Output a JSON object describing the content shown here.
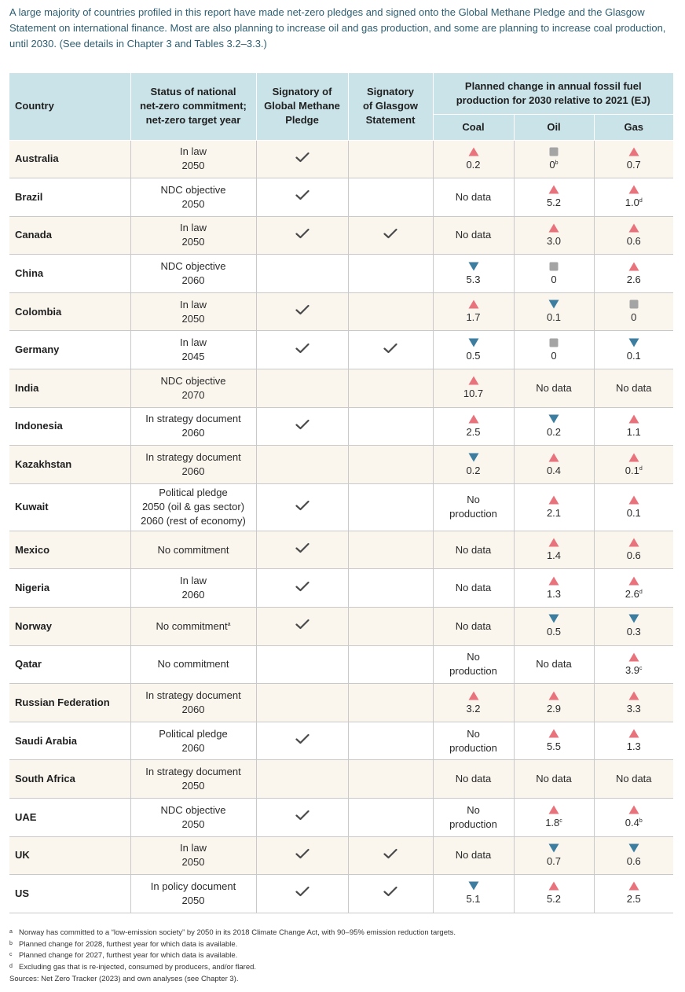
{
  "intro": "A large majority of countries profiled in this report have made net-zero pledges and signed onto the Global Methane Pledge and the Glasgow Statement on international finance. Most are also planning to increase oil and gas production, and some are planning to increase coal production, until 2030. (See details in Chapter 3 and Tables 3.2–3.3.)",
  "colors": {
    "up": "#e8737c",
    "down": "#3d7ea0",
    "flat": "#a4a4a4",
    "header_bg": "#c9e3e8",
    "row_alt": "#faf6ee",
    "intro_text": "#2d5f72"
  },
  "headers": {
    "country": "Country",
    "status": [
      "Status of national",
      "net-zero commitment;",
      "net-zero target year"
    ],
    "methane": [
      "Signatory of",
      "Global Methane",
      "Pledge"
    ],
    "glasgow": [
      "Signatory",
      "of Glasgow",
      "Statement"
    ],
    "planned": [
      "Planned change in annual fossil fuel",
      "production for 2030 relative to 2021 (EJ)"
    ],
    "coal": "Coal",
    "oil": "Oil",
    "gas": "Gas"
  },
  "rows": [
    {
      "country": "Australia",
      "status": [
        "In law",
        "2050"
      ],
      "methane": true,
      "glasgow": false,
      "coal": {
        "dir": "up",
        "value": "0.2",
        "note": ""
      },
      "oil": {
        "dir": "flat",
        "value": "0",
        "note": "b"
      },
      "gas": {
        "dir": "up",
        "value": "0.7",
        "note": ""
      }
    },
    {
      "country": "Brazil",
      "status": [
        "NDC objective",
        "2050"
      ],
      "methane": true,
      "glasgow": false,
      "coal": {
        "text": [
          "No data"
        ]
      },
      "oil": {
        "dir": "up",
        "value": "5.2",
        "note": ""
      },
      "gas": {
        "dir": "up",
        "value": "1.0",
        "note": "d"
      }
    },
    {
      "country": "Canada",
      "status": [
        "In law",
        "2050"
      ],
      "methane": true,
      "glasgow": true,
      "coal": {
        "text": [
          "No data"
        ]
      },
      "oil": {
        "dir": "up",
        "value": "3.0",
        "note": ""
      },
      "gas": {
        "dir": "up",
        "value": "0.6",
        "note": ""
      }
    },
    {
      "country": "China",
      "status": [
        "NDC objective",
        "2060"
      ],
      "methane": false,
      "glasgow": false,
      "coal": {
        "dir": "down",
        "value": "5.3",
        "note": ""
      },
      "oil": {
        "dir": "flat",
        "value": "0",
        "note": ""
      },
      "gas": {
        "dir": "up",
        "value": "2.6",
        "note": ""
      }
    },
    {
      "country": "Colombia",
      "status": [
        "In law",
        "2050"
      ],
      "methane": true,
      "glasgow": false,
      "coal": {
        "dir": "up",
        "value": "1.7",
        "note": ""
      },
      "oil": {
        "dir": "down",
        "value": "0.1",
        "note": ""
      },
      "gas": {
        "dir": "flat",
        "value": "0",
        "note": ""
      }
    },
    {
      "country": "Germany",
      "status": [
        "In law",
        "2045"
      ],
      "methane": true,
      "glasgow": true,
      "coal": {
        "dir": "down",
        "value": "0.5",
        "note": ""
      },
      "oil": {
        "dir": "flat",
        "value": "0",
        "note": ""
      },
      "gas": {
        "dir": "down",
        "value": "0.1",
        "note": ""
      }
    },
    {
      "country": "India",
      "status": [
        "NDC objective",
        "2070"
      ],
      "methane": false,
      "glasgow": false,
      "coal": {
        "dir": "up",
        "value": "10.7",
        "note": ""
      },
      "oil": {
        "text": [
          "No data"
        ]
      },
      "gas": {
        "text": [
          "No data"
        ]
      }
    },
    {
      "country": "Indonesia",
      "status": [
        "In strategy document",
        "2060"
      ],
      "methane": true,
      "glasgow": false,
      "coal": {
        "dir": "up",
        "value": "2.5",
        "note": ""
      },
      "oil": {
        "dir": "down",
        "value": "0.2",
        "note": ""
      },
      "gas": {
        "dir": "up",
        "value": "1.1",
        "note": ""
      }
    },
    {
      "country": "Kazakhstan",
      "status": [
        "In strategy document",
        "2060"
      ],
      "methane": false,
      "glasgow": false,
      "coal": {
        "dir": "down",
        "value": "0.2",
        "note": ""
      },
      "oil": {
        "dir": "up",
        "value": "0.4",
        "note": ""
      },
      "gas": {
        "dir": "up",
        "value": "0.1",
        "note": "d"
      }
    },
    {
      "country": "Kuwait",
      "status": [
        "Political pledge",
        "2050 (oil & gas sector)",
        "2060 (rest of economy)"
      ],
      "methane": true,
      "glasgow": false,
      "coal": {
        "text": [
          "No",
          "production"
        ]
      },
      "oil": {
        "dir": "up",
        "value": "2.1",
        "note": ""
      },
      "gas": {
        "dir": "up",
        "value": "0.1",
        "note": ""
      }
    },
    {
      "country": "Mexico",
      "status": [
        "No commitment"
      ],
      "methane": true,
      "glasgow": false,
      "coal": {
        "text": [
          "No data"
        ]
      },
      "oil": {
        "dir": "up",
        "value": "1.4",
        "note": ""
      },
      "gas": {
        "dir": "up",
        "value": "0.6",
        "note": ""
      }
    },
    {
      "country": "Nigeria",
      "status": [
        "In law",
        "2060"
      ],
      "methane": true,
      "glasgow": false,
      "coal": {
        "text": [
          "No data"
        ]
      },
      "oil": {
        "dir": "up",
        "value": "1.3",
        "note": ""
      },
      "gas": {
        "dir": "up",
        "value": "2.6",
        "note": "d"
      }
    },
    {
      "country": "Norway",
      "status": [
        "No commitment"
      ],
      "status_note": "a",
      "methane": true,
      "glasgow": false,
      "coal": {
        "text": [
          "No data"
        ]
      },
      "oil": {
        "dir": "down",
        "value": "0.5",
        "note": ""
      },
      "gas": {
        "dir": "down",
        "value": "0.3",
        "note": ""
      }
    },
    {
      "country": "Qatar",
      "status": [
        "No commitment"
      ],
      "methane": false,
      "glasgow": false,
      "coal": {
        "text": [
          "No",
          "production"
        ]
      },
      "oil": {
        "text": [
          "No data"
        ]
      },
      "gas": {
        "dir": "up",
        "value": "3.9",
        "note": "c"
      }
    },
    {
      "country": "Russian Federation",
      "status": [
        "In strategy document",
        "2060"
      ],
      "methane": false,
      "glasgow": false,
      "coal": {
        "dir": "up",
        "value": "3.2",
        "note": ""
      },
      "oil": {
        "dir": "up",
        "value": "2.9",
        "note": ""
      },
      "gas": {
        "dir": "up",
        "value": "3.3",
        "note": ""
      }
    },
    {
      "country": "Saudi Arabia",
      "status": [
        "Political pledge",
        "2060"
      ],
      "methane": true,
      "glasgow": false,
      "coal": {
        "text": [
          "No",
          "production"
        ]
      },
      "oil": {
        "dir": "up",
        "value": "5.5",
        "note": ""
      },
      "gas": {
        "dir": "up",
        "value": "1.3",
        "note": ""
      }
    },
    {
      "country": "South Africa",
      "status": [
        "In strategy document",
        "2050"
      ],
      "methane": false,
      "glasgow": false,
      "coal": {
        "text": [
          "No data"
        ]
      },
      "oil": {
        "text": [
          "No data"
        ]
      },
      "gas": {
        "text": [
          "No data"
        ]
      }
    },
    {
      "country": "UAE",
      "status": [
        "NDC objective",
        "2050"
      ],
      "methane": true,
      "glasgow": false,
      "coal": {
        "text": [
          "No",
          "production"
        ]
      },
      "oil": {
        "dir": "up",
        "value": "1.8",
        "note": "c"
      },
      "gas": {
        "dir": "up",
        "value": "0.4",
        "note": "b"
      }
    },
    {
      "country": "UK",
      "status": [
        "In law",
        "2050"
      ],
      "methane": true,
      "glasgow": true,
      "coal": {
        "text": [
          "No data"
        ]
      },
      "oil": {
        "dir": "down",
        "value": "0.7",
        "note": ""
      },
      "gas": {
        "dir": "down",
        "value": "0.6",
        "note": ""
      }
    },
    {
      "country": "US",
      "status": [
        "In policy document",
        "2050"
      ],
      "methane": true,
      "glasgow": true,
      "coal": {
        "dir": "down",
        "value": "5.1",
        "note": ""
      },
      "oil": {
        "dir": "up",
        "value": "5.2",
        "note": ""
      },
      "gas": {
        "dir": "up",
        "value": "2.5",
        "note": ""
      }
    }
  ],
  "footnotes": [
    {
      "mark": "a",
      "text": "Norway has committed to a “low-emission society” by 2050 in its 2018 Climate Change Act, with 90–95% emission reduction targets."
    },
    {
      "mark": "b",
      "text": "Planned change for 2028, furthest year for which data is available."
    },
    {
      "mark": "c",
      "text": "Planned change for 2027, furthest year for which data is available."
    },
    {
      "mark": "d",
      "text": "Excluding gas that is re-injected, consumed by producers, and/or flared."
    }
  ],
  "sources": "Sources: Net Zero Tracker (2023) and own analyses (see Chapter 3)."
}
